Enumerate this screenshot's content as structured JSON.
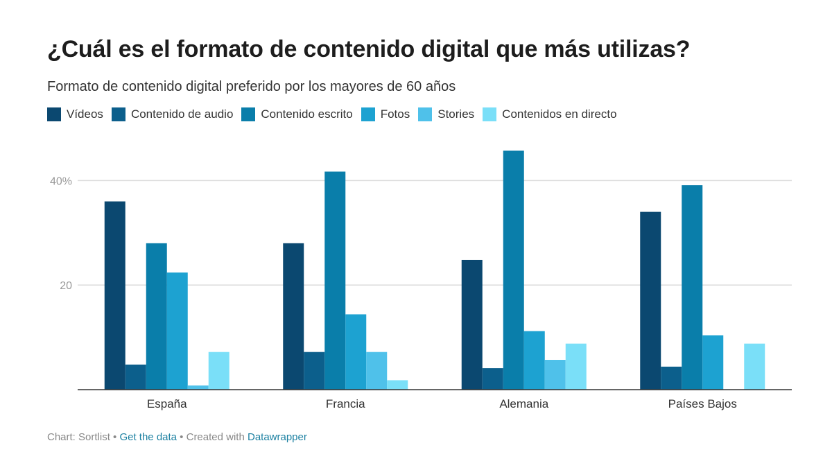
{
  "header": {
    "title": "¿Cuál es el formato de contenido digital que más utilizas?",
    "subtitle": "Formato de contenido digital preferido por los mayores de 60 años"
  },
  "legend": [
    {
      "label": "Vídeos",
      "color": "#0b4870"
    },
    {
      "label": "Contenido de audio",
      "color": "#0c5f8c"
    },
    {
      "label": "Contenido escrito",
      "color": "#0a7eaa"
    },
    {
      "label": "Fotos",
      "color": "#1da2d1"
    },
    {
      "label": "Stories",
      "color": "#4fc1ea"
    },
    {
      "label": "Contenidos en directo",
      "color": "#7adff8"
    }
  ],
  "chart_data": {
    "type": "bar",
    "categories": [
      "España",
      "Francia",
      "Alemania",
      "Países Bajos"
    ],
    "series": [
      {
        "name": "Vídeos",
        "values": [
          36,
          28,
          24.8,
          34
        ]
      },
      {
        "name": "Contenido de audio",
        "values": [
          4.8,
          7.2,
          4.1,
          4.4
        ]
      },
      {
        "name": "Contenido escrito",
        "values": [
          28,
          41.7,
          45.7,
          39.1
        ]
      },
      {
        "name": "Fotos",
        "values": [
          22.4,
          14.4,
          11.2,
          10.4
        ]
      },
      {
        "name": "Stories",
        "values": [
          0.8,
          7.2,
          5.7,
          0
        ]
      },
      {
        "name": "Contenidos en directo",
        "values": [
          7.2,
          1.8,
          8.8,
          8.8
        ]
      }
    ],
    "ylim": [
      0,
      48
    ],
    "yticks": [
      {
        "value": 20,
        "label": "20"
      },
      {
        "value": 40,
        "label": "40%"
      }
    ],
    "title": "¿Cuál es el formato de contenido digital que más utilizas?",
    "xlabel": "",
    "ylabel": ""
  },
  "footer": {
    "source": "Chart: Sortlist",
    "sep1": " • ",
    "get_data": "Get the data",
    "sep2": " • ",
    "created": "Created with ",
    "tool": "Datawrapper"
  }
}
